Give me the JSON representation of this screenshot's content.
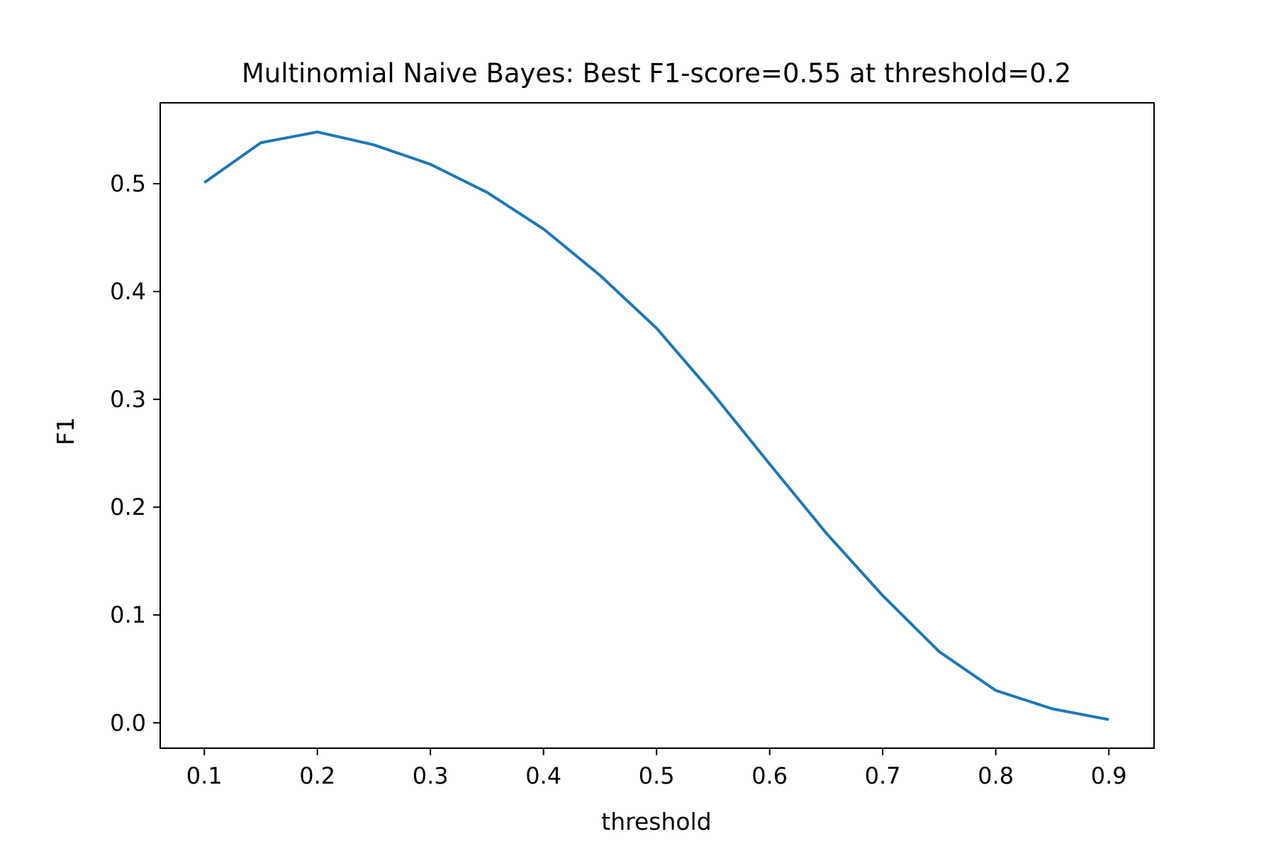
{
  "chart_data": {
    "type": "line",
    "title": "Multinomial Naive Bayes: Best F1-score=0.55 at threshold=0.2",
    "xlabel": "threshold",
    "ylabel": "F1",
    "xlim": [
      0.061,
      0.94
    ],
    "ylim": [
      -0.0235,
      0.575
    ],
    "xticks": [
      0.1,
      0.2,
      0.3,
      0.4,
      0.5,
      0.6,
      0.7,
      0.8,
      0.9
    ],
    "xtick_labels": [
      "0.1",
      "0.2",
      "0.3",
      "0.4",
      "0.5",
      "0.6",
      "0.7",
      "0.8",
      "0.9"
    ],
    "yticks": [
      0.0,
      0.1,
      0.2,
      0.3,
      0.4,
      0.5
    ],
    "ytick_labels": [
      "0.0",
      "0.1",
      "0.2",
      "0.3",
      "0.4",
      "0.5"
    ],
    "grid": false,
    "legend": "none",
    "series": [
      {
        "color": "#1f77b4",
        "x": [
          0.1,
          0.15,
          0.2,
          0.25,
          0.3,
          0.35,
          0.4,
          0.45,
          0.5,
          0.55,
          0.6,
          0.65,
          0.7,
          0.75,
          0.8,
          0.85,
          0.9
        ],
        "y": [
          0.501,
          0.538,
          0.548,
          0.536,
          0.518,
          0.492,
          0.458,
          0.415,
          0.366,
          0.305,
          0.24,
          0.176,
          0.118,
          0.066,
          0.03,
          0.013,
          0.003
        ]
      }
    ]
  }
}
